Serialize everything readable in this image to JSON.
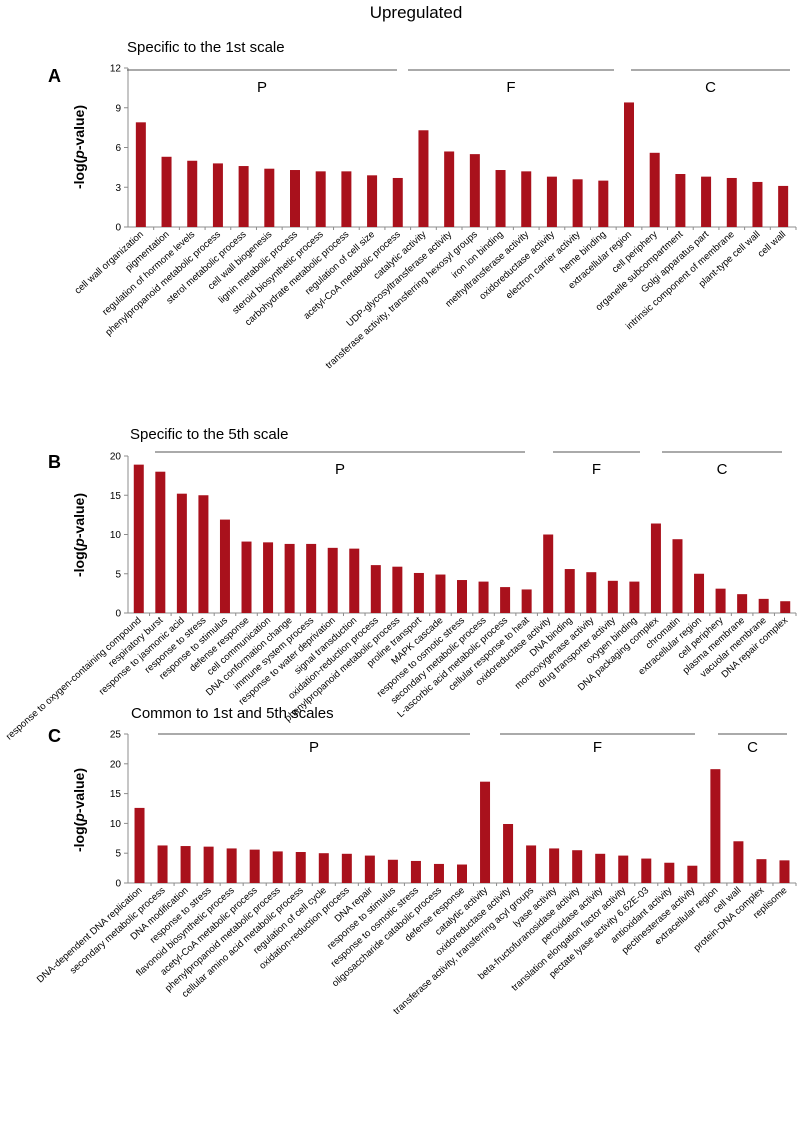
{
  "figure_title": "Upregulated",
  "ylabel": "-log(p-value)",
  "colors": {
    "bar": "#A9111C",
    "axis": "#8C8C8C",
    "group_line": "#555555"
  },
  "chart_data": [
    {
      "panel": "A",
      "type": "bar",
      "subtitle": "Specific to the 1st scale",
      "ylabel": "-log(p-value)",
      "ylim": [
        0,
        12
      ],
      "yticks": [
        0,
        3,
        6,
        9,
        12
      ],
      "groups": [
        {
          "label": "P",
          "start": 0,
          "end": 10
        },
        {
          "label": "F",
          "start": 11,
          "end": 18
        },
        {
          "label": "C",
          "start": 19,
          "end": 25
        }
      ],
      "categories": [
        "cell wall organization",
        "pigmentation",
        "regulation of hormone levels",
        "phenylpropanoid metabolic process",
        "sterol metabolic process",
        "cell wall biogenesis",
        "lignin metabolic process",
        "steroid biosynthetic process",
        "carbohydrate metabolic process",
        "regulation of cell size",
        "acetyl-CoA metabolic process",
        "catalytic activity",
        "UDP-glycosyltransferase activity",
        "transferase activity, transferring hexosyl groups",
        "iron ion binding",
        "methyltransferase activity",
        "oxidoreductase activity",
        "electron carrier activity",
        "heme binding",
        "extracellular region",
        "cell periphery",
        "organelle subcompartment",
        "Golgi apparatus part",
        "intrinsic component of membrane",
        "plant-type cell wall",
        "cell wall"
      ],
      "values": [
        7.9,
        5.3,
        5.0,
        4.8,
        4.6,
        4.4,
        4.3,
        4.2,
        4.2,
        3.9,
        3.7,
        7.3,
        5.7,
        5.5,
        4.3,
        4.2,
        3.8,
        3.6,
        3.5,
        9.4,
        5.6,
        4.0,
        3.8,
        3.7,
        3.4,
        3.1
      ]
    },
    {
      "panel": "B",
      "type": "bar",
      "subtitle": "Specific to the 5th scale",
      "ylabel": "-log(p-value)",
      "ylim": [
        0,
        20
      ],
      "yticks": [
        0,
        5,
        10,
        15,
        20
      ],
      "groups": [
        {
          "label": "P",
          "start": 0,
          "end": 18
        },
        {
          "label": "F",
          "start": 19,
          "end": 23
        },
        {
          "label": "C",
          "start": 24,
          "end": 30
        }
      ],
      "categories": [
        "response to oxygen-containing compound",
        "respiratory burst",
        "response to jasmonic acid",
        "response to stress",
        "response to stimulus",
        "defense response",
        "cell communication",
        "DNA conformation change",
        "immune system process",
        "response to water deprivation",
        "signal transduction",
        "oxidation-reduction process",
        "phenylpropanoid metabolic process",
        "proline transport",
        "MAPK cascade",
        "response to osmotic stress",
        "secondary metabolic process",
        "L-ascorbic acid metabolic process",
        "cellular response to heat",
        "oxidoreductase activity",
        "DNA binding",
        "monooxygenase activity",
        "drug transporter activity",
        "oxygen binding",
        "DNA packaging complex",
        "chromatin",
        "extracellular region",
        "cell periphery",
        "plasma membrane",
        "vacuolar membrane",
        "DNA repair complex"
      ],
      "values": [
        18.9,
        18.0,
        15.2,
        15.0,
        11.9,
        9.1,
        9.0,
        8.8,
        8.8,
        8.3,
        8.2,
        6.1,
        5.9,
        5.1,
        4.9,
        4.2,
        4.0,
        3.3,
        3.0,
        10.0,
        5.6,
        5.2,
        4.1,
        4.0,
        11.4,
        9.4,
        5.0,
        3.1,
        2.4,
        1.8,
        1.5
      ]
    },
    {
      "panel": "C",
      "type": "bar",
      "subtitle": "Common to 1st and 5th scales",
      "ylabel": "-log(p-value)",
      "ylim": [
        0,
        25
      ],
      "yticks": [
        0,
        5,
        10,
        15,
        20,
        25
      ],
      "groups": [
        {
          "label": "P",
          "start": 0,
          "end": 14
        },
        {
          "label": "F",
          "start": 15,
          "end": 24
        },
        {
          "label": "C",
          "start": 25,
          "end": 28
        }
      ],
      "categories": [
        "DNA-dependent DNA replication",
        "secondary metabolic process",
        "DNA modification",
        "response to stress",
        "flavonoid biosynthetic process",
        "acetyl-CoA metabolic process",
        "phenylpropanoid metabolic process",
        "cellular amino acid metabolic process",
        "regulation of cell cycle",
        "oxidation-reduction process",
        "DNA repair",
        "response to stimulus",
        "response to osmotic stress",
        "oligosaccharide catabolic process",
        "defense response",
        "catalytic activity",
        "oxidoreductase activity",
        "transferase activity, transferring acyl groups",
        "lyase activity",
        "beta-fructofuranosidase activity",
        "peroxidase activity",
        "translation elongation factor activity",
        "pectate lyase activity 6.62E-03",
        "antioxidant activity",
        "pectinesterase activity",
        "extracellular region",
        "cell wall",
        "protein-DNA complex",
        "replisome"
      ],
      "values": [
        12.6,
        6.3,
        6.2,
        6.1,
        5.8,
        5.6,
        5.3,
        5.2,
        5.0,
        4.9,
        4.6,
        3.9,
        3.7,
        3.2,
        3.1,
        17.0,
        9.9,
        6.3,
        5.8,
        5.5,
        4.9,
        4.6,
        4.1,
        3.4,
        2.9,
        19.1,
        7.0,
        4.0,
        3.8
      ]
    }
  ]
}
